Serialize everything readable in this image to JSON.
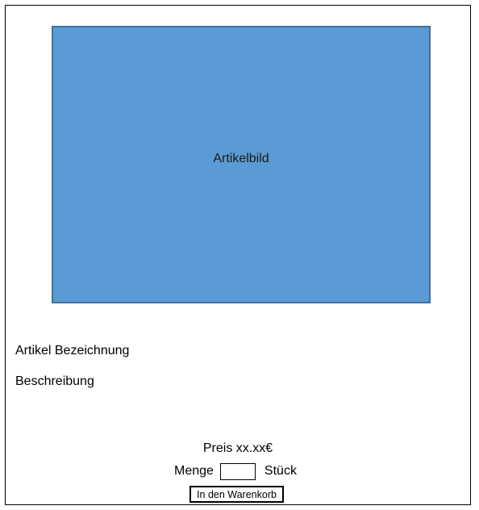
{
  "product": {
    "image_label": "Artikelbild",
    "title": "Artikel Bezeichnung",
    "description": "Beschreibung",
    "price": "Preis xx.xx€"
  },
  "quantity": {
    "label": "Menge",
    "value": "",
    "unit": "Stück"
  },
  "actions": {
    "add_to_cart_label": "In den Warenkorb"
  },
  "colors": {
    "image_fill": "#5b9bd5",
    "image_border": "#41719c"
  }
}
